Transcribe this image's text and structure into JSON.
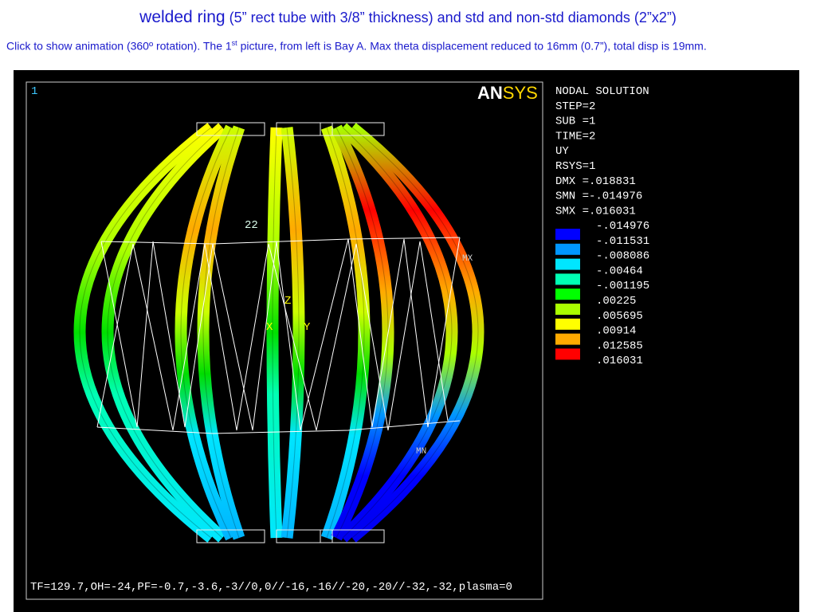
{
  "header": {
    "title_main": "welded ring",
    "title_detail": "(5” rect tube with 3/8” thickness) and std and non-std diamonds (2”x2”)",
    "subtitle": {
      "part1": "Click to show animation (360º rotation). The 1",
      "sup": "st",
      "part2": " picture, from left is Bay A. Max theta displacement reduced to 16mm (0.7”), total disp is 19mm."
    }
  },
  "plot": {
    "window_number": "1",
    "logo_an": "AN",
    "logo_sys": "SYS",
    "info": [
      "NODAL SOLUTION",
      "STEP=2",
      "SUB =1",
      "TIME=2",
      "UY",
      "RSYS=1",
      "DMX =.018831",
      "SMN =-.014976",
      "SMX =.016031"
    ],
    "legend": {
      "labels": [
        "-.014976",
        "-.011531",
        "-.008086",
        "-.00464",
        "-.001195",
        ".00225",
        ".005695",
        ".00914",
        ".012585",
        ".016031"
      ],
      "colors": [
        "#0000ff",
        "#0096ff",
        "#00e6ff",
        "#00ffb4",
        "#00ff00",
        "#aaff00",
        "#ffff00",
        "#ffaa00",
        "#ff0000"
      ]
    },
    "labels": {
      "node": "22",
      "z": "Z",
      "x": "X",
      "y": "Y",
      "max": "MX",
      "min": "MN"
    },
    "footer": "TF=129.7,OH=-24,PF=-0.7,-3.6,-3//0,0//-16,-16//-20,-20//-32,-32,plasma=0"
  }
}
